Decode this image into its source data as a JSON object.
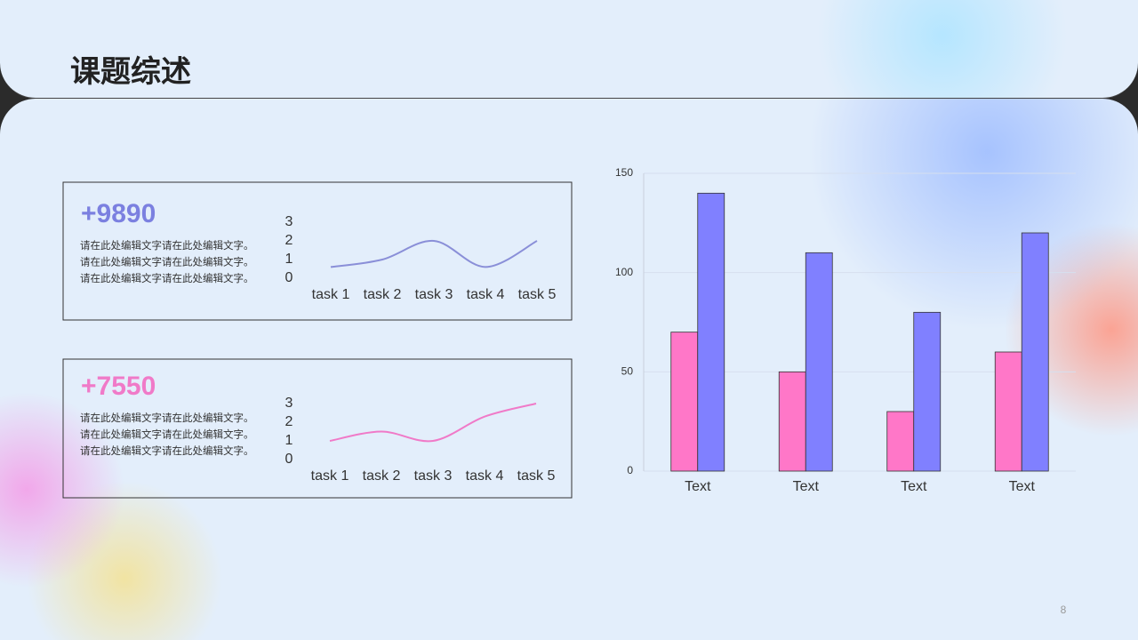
{
  "title": "课题综述",
  "page_number": "8",
  "cards": [
    {
      "stat": "+9890",
      "lines": [
        "请在此处编辑文字请在此处编辑文字。",
        "请在此处编辑文字请在此处编辑文字。",
        "请在此处编辑文字请在此处编辑文字。"
      ]
    },
    {
      "stat": "+7550",
      "lines": [
        "请在此处编辑文字请在此处编辑文字。",
        "请在此处编辑文字请在此处编辑文字。",
        "请在此处编辑文字请在此处编辑文字。"
      ]
    }
  ],
  "chart_data": [
    {
      "type": "line",
      "categories": [
        "task 1",
        "task 2",
        "task 3",
        "task 4",
        "task 5"
      ],
      "values": [
        0.6,
        1,
        2,
        0.6,
        2
      ],
      "color": "#8a8fd8",
      "ylim": [
        0,
        3
      ],
      "yticks": [
        0,
        1,
        2,
        3
      ]
    },
    {
      "type": "line",
      "categories": [
        "task 1",
        "task 2",
        "task 3",
        "task 4",
        "task 5"
      ],
      "values": [
        1,
        1.5,
        1,
        2.3,
        3
      ],
      "color": "#f07ac8",
      "ylim": [
        0,
        3
      ],
      "yticks": [
        0,
        1,
        2,
        3
      ]
    },
    {
      "type": "bar",
      "categories": [
        "Text",
        "Text",
        "Text",
        "Text"
      ],
      "series": [
        {
          "color": "#ff77c8",
          "values": [
            70,
            50,
            30,
            60
          ]
        },
        {
          "color": "#8080ff",
          "values": [
            140,
            110,
            80,
            120
          ]
        }
      ],
      "ylim": [
        0,
        150
      ],
      "yticks": [
        0,
        50,
        100,
        150
      ],
      "grid": true
    }
  ]
}
